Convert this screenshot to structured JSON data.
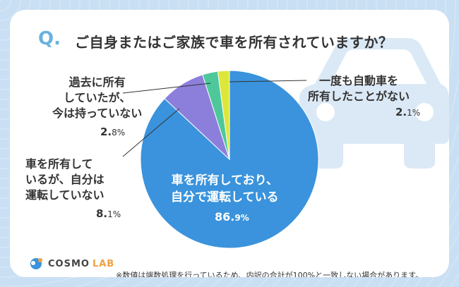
{
  "question": {
    "mark": "Q.",
    "text": "ご自身またはご家族で車を所有されていますか？"
  },
  "chart_data": {
    "type": "pie",
    "title": "ご自身またはご家族で車を所有されていますか？",
    "slices": [
      {
        "label": "車を所有しており、\n自分で運転している",
        "value": 86.9,
        "pct_num": "86.",
        "pct_dec": "9%",
        "color": "#3a93dc"
      },
      {
        "label": "車を所有して\nいるが、自分は\n運転していない",
        "value": 8.1,
        "pct_num": "8.",
        "pct_dec": "1%",
        "color": "#8c7fdb"
      },
      {
        "label": "過去に所有\nしていたが、\n今は持っていない",
        "value": 2.8,
        "pct_num": "2.",
        "pct_dec": "8%",
        "color": "#4ec89a"
      },
      {
        "label": "一度も自動車を\n所有したことがない",
        "value": 2.1,
        "pct_num": "2.",
        "pct_dec": "1%",
        "color": "#dde63a"
      }
    ]
  },
  "footer": {
    "note": "※数値は端数処理を行っているため、内訳の合計が100%と一致しない場合があります。",
    "logo_text_1": "COSMO",
    "logo_text_2": "LAB"
  },
  "colors": {
    "accent": "#6ab1de",
    "background": "#c9dff3",
    "car": "#dbe9f6"
  }
}
